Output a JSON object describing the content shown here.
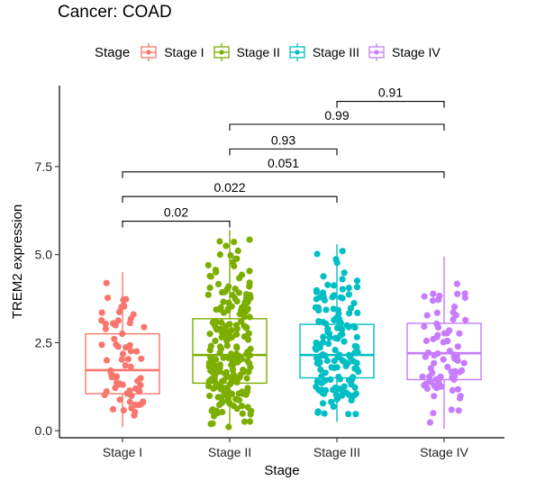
{
  "title": "Cancer: COAD",
  "legend": {
    "title": "Stage",
    "items": [
      {
        "label": "Stage I",
        "color": "#F8766D"
      },
      {
        "label": "Stage II",
        "color": "#7CAE00"
      },
      {
        "label": "Stage III",
        "color": "#00BFC4"
      },
      {
        "label": "Stage IV",
        "color": "#C77CFF"
      }
    ]
  },
  "chart_data": {
    "type": "box",
    "xlabel": "Stage",
    "ylabel": "TREM2 expression",
    "categories": [
      "Stage I",
      "Stage II",
      "Stage III",
      "Stage IV"
    ],
    "colors": [
      "#F8766D",
      "#7CAE00",
      "#00BFC4",
      "#C77CFF"
    ],
    "ylim": [
      -0.2,
      9.8
    ],
    "yticks": [
      0.0,
      2.5,
      5.0,
      7.5
    ],
    "ytick_labels": [
      "0.0",
      "2.5",
      "5.0",
      "7.5"
    ],
    "boxes": [
      {
        "category": "Stage I",
        "min": 0.1,
        "q1": 1.05,
        "median": 1.72,
        "q3": 2.75,
        "max": 4.5
      },
      {
        "category": "Stage II",
        "min": 0.05,
        "q1": 1.35,
        "median": 2.15,
        "q3": 3.18,
        "max": 5.7
      },
      {
        "category": "Stage III",
        "min": 0.25,
        "q1": 1.5,
        "median": 2.15,
        "q3": 3.02,
        "max": 5.3
      },
      {
        "category": "Stage IV",
        "min": 0.05,
        "q1": 1.45,
        "median": 2.2,
        "q3": 3.05,
        "max": 4.95
      }
    ],
    "point_counts": [
      70,
      220,
      150,
      80
    ],
    "comparisons": [
      {
        "group1": "Stage III",
        "group2": "Stage IV",
        "p": "0.91",
        "y": 9.35
      },
      {
        "group1": "Stage II",
        "group2": "Stage IV",
        "p": "0.99",
        "y": 8.7
      },
      {
        "group1": "Stage II",
        "group2": "Stage III",
        "p": "0.93",
        "y": 8.0
      },
      {
        "group1": "Stage I",
        "group2": "Stage IV",
        "p": "0.051",
        "y": 7.35
      },
      {
        "group1": "Stage I",
        "group2": "Stage III",
        "p": "0.022",
        "y": 6.65
      },
      {
        "group1": "Stage I",
        "group2": "Stage II",
        "p": "0.02",
        "y": 5.95
      }
    ],
    "grid": false
  }
}
